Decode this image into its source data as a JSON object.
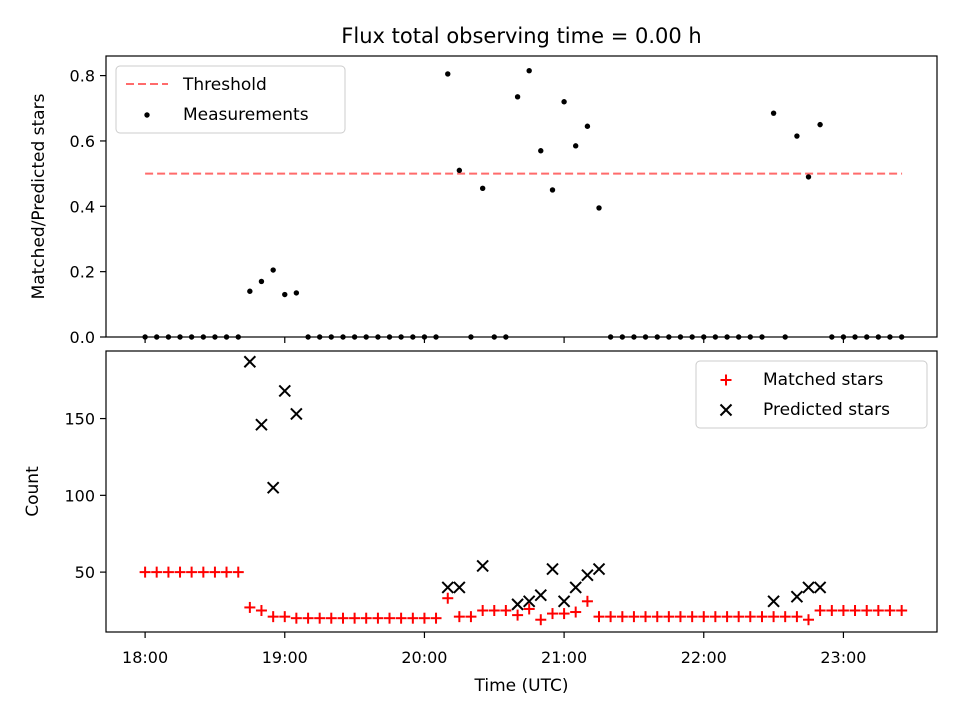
{
  "chart_data": {
    "title": "Flux total observing time = 0.00 h",
    "xlabel": "Time (UTC)",
    "x_ticks": [
      "18:00",
      "19:00",
      "20:00",
      "21:00",
      "22:00",
      "23:00"
    ],
    "xlim_hours": [
      17.72,
      23.67
    ],
    "panels": [
      {
        "type": "scatter",
        "ylabel": "Matched/Predicted stars",
        "ylim": [
          0,
          0.86
        ],
        "y_ticks": [
          "0.0",
          "0.2",
          "0.4",
          "0.6",
          "0.8"
        ],
        "legend_position": "upper-left",
        "threshold": {
          "name": "Threshold",
          "value": 0.5,
          "x_range_hours": [
            18.0,
            23.42
          ],
          "color": "#ff6b6b"
        },
        "series": [
          {
            "name": "Measurements",
            "color": "#000000",
            "points": [
              [
                18.0,
                0
              ],
              [
                18.083,
                0
              ],
              [
                18.167,
                0
              ],
              [
                18.25,
                0
              ],
              [
                18.333,
                0
              ],
              [
                18.417,
                0
              ],
              [
                18.5,
                0
              ],
              [
                18.583,
                0
              ],
              [
                18.667,
                0
              ],
              [
                18.75,
                0.14
              ],
              [
                18.833,
                0.17
              ],
              [
                18.917,
                0.205
              ],
              [
                19.0,
                0.13
              ],
              [
                19.083,
                0.135
              ],
              [
                19.167,
                0
              ],
              [
                19.25,
                0
              ],
              [
                19.333,
                0
              ],
              [
                19.417,
                0
              ],
              [
                19.5,
                0
              ],
              [
                19.583,
                0
              ],
              [
                19.667,
                0
              ],
              [
                19.75,
                0
              ],
              [
                19.833,
                0
              ],
              [
                19.917,
                0
              ],
              [
                20.0,
                0
              ],
              [
                20.083,
                0
              ],
              [
                20.167,
                0.805
              ],
              [
                20.25,
                0.51
              ],
              [
                20.333,
                0
              ],
              [
                20.417,
                0.455
              ],
              [
                20.5,
                0
              ],
              [
                20.583,
                0
              ],
              [
                20.667,
                0.735
              ],
              [
                20.75,
                0.815
              ],
              [
                20.833,
                0.57
              ],
              [
                20.917,
                0.45
              ],
              [
                21.0,
                0.72
              ],
              [
                21.083,
                0.585
              ],
              [
                21.167,
                0.645
              ],
              [
                21.25,
                0.395
              ],
              [
                21.333,
                0
              ],
              [
                21.417,
                0
              ],
              [
                21.5,
                0
              ],
              [
                21.583,
                0
              ],
              [
                21.667,
                0
              ],
              [
                21.75,
                0
              ],
              [
                21.833,
                0
              ],
              [
                21.917,
                0
              ],
              [
                22.0,
                0
              ],
              [
                22.083,
                0
              ],
              [
                22.167,
                0
              ],
              [
                22.25,
                0
              ],
              [
                22.333,
                0
              ],
              [
                22.417,
                0
              ],
              [
                22.5,
                0.685
              ],
              [
                22.583,
                0
              ],
              [
                22.667,
                0.615
              ],
              [
                22.75,
                0.49
              ],
              [
                22.833,
                0.65
              ],
              [
                22.917,
                0
              ],
              [
                23.0,
                0
              ],
              [
                23.083,
                0
              ],
              [
                23.167,
                0
              ],
              [
                23.25,
                0
              ],
              [
                23.333,
                0
              ],
              [
                23.417,
                0
              ]
            ]
          }
        ]
      },
      {
        "type": "scatter",
        "ylabel": "Count",
        "ylim": [
          11,
          194
        ],
        "y_ticks": [
          "50",
          "100",
          "150"
        ],
        "legend_position": "upper-right",
        "series": [
          {
            "name": "Matched stars",
            "marker": "+",
            "color": "#ff0000",
            "points": [
              [
                18.0,
                50
              ],
              [
                18.083,
                50
              ],
              [
                18.167,
                50
              ],
              [
                18.25,
                50
              ],
              [
                18.333,
                50
              ],
              [
                18.417,
                50
              ],
              [
                18.5,
                50
              ],
              [
                18.583,
                50
              ],
              [
                18.667,
                50
              ],
              [
                18.75,
                27
              ],
              [
                18.833,
                25
              ],
              [
                18.917,
                21
              ],
              [
                19.0,
                21
              ],
              [
                19.083,
                20
              ],
              [
                19.167,
                20
              ],
              [
                19.25,
                20
              ],
              [
                19.333,
                20
              ],
              [
                19.417,
                20
              ],
              [
                19.5,
                20
              ],
              [
                19.583,
                20
              ],
              [
                19.667,
                20
              ],
              [
                19.75,
                20
              ],
              [
                19.833,
                20
              ],
              [
                19.917,
                20
              ],
              [
                20.0,
                20
              ],
              [
                20.083,
                20
              ],
              [
                20.167,
                33
              ],
              [
                20.25,
                21
              ],
              [
                20.333,
                21
              ],
              [
                20.417,
                25
              ],
              [
                20.5,
                25
              ],
              [
                20.583,
                25
              ],
              [
                20.667,
                22
              ],
              [
                20.75,
                26
              ],
              [
                20.833,
                19
              ],
              [
                20.917,
                23
              ],
              [
                21.0,
                23
              ],
              [
                21.083,
                24
              ],
              [
                21.167,
                31
              ],
              [
                21.25,
                21
              ],
              [
                21.333,
                21
              ],
              [
                21.417,
                21
              ],
              [
                21.5,
                21
              ],
              [
                21.583,
                21
              ],
              [
                21.667,
                21
              ],
              [
                21.75,
                21
              ],
              [
                21.833,
                21
              ],
              [
                21.917,
                21
              ],
              [
                22.0,
                21
              ],
              [
                22.083,
                21
              ],
              [
                22.167,
                21
              ],
              [
                22.25,
                21
              ],
              [
                22.333,
                21
              ],
              [
                22.417,
                21
              ],
              [
                22.5,
                21
              ],
              [
                22.583,
                21
              ],
              [
                22.667,
                21
              ],
              [
                22.75,
                19
              ],
              [
                22.833,
                25
              ],
              [
                22.917,
                25
              ],
              [
                23.0,
                25
              ],
              [
                23.083,
                25
              ],
              [
                23.167,
                25
              ],
              [
                23.25,
                25
              ],
              [
                23.333,
                25
              ],
              [
                23.417,
                25
              ]
            ]
          },
          {
            "name": "Predicted stars",
            "marker": "x",
            "color": "#000000",
            "points": [
              [
                18.75,
                187
              ],
              [
                18.833,
                146
              ],
              [
                18.917,
                105
              ],
              [
                19.0,
                168
              ],
              [
                19.083,
                153
              ],
              [
                20.167,
                40
              ],
              [
                20.25,
                40
              ],
              [
                20.417,
                54
              ],
              [
                20.667,
                29
              ],
              [
                20.75,
                31
              ],
              [
                20.833,
                35
              ],
              [
                20.917,
                52
              ],
              [
                21.0,
                31
              ],
              [
                21.083,
                40
              ],
              [
                21.167,
                48
              ],
              [
                21.25,
                52
              ],
              [
                22.5,
                31
              ],
              [
                22.667,
                34
              ],
              [
                22.75,
                40
              ],
              [
                22.833,
                40
              ]
            ]
          }
        ]
      }
    ]
  }
}
